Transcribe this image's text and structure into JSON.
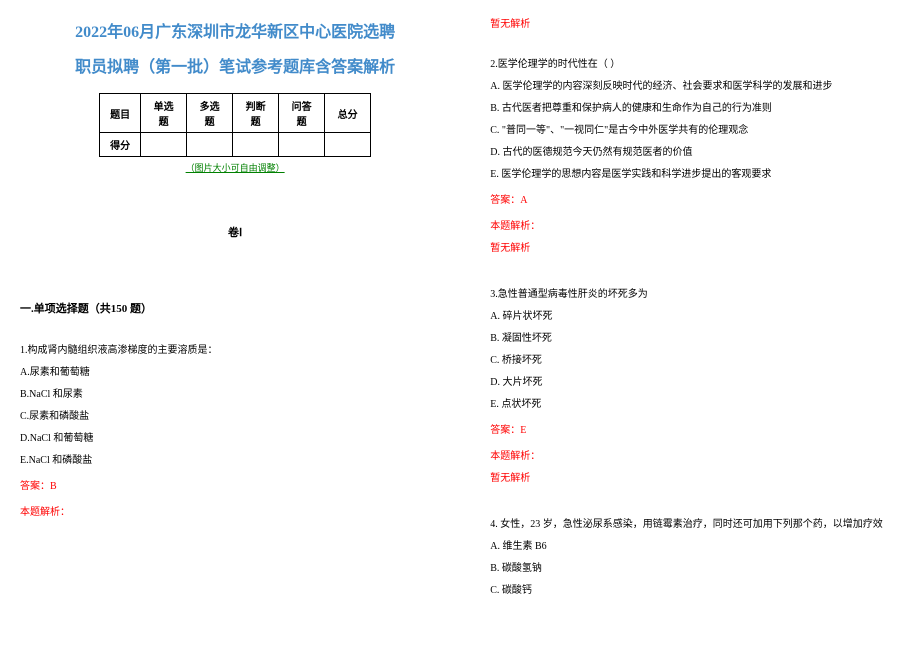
{
  "title_line1": "2022年06月广东深圳市龙华新区中心医院选聘",
  "title_line2": "职员拟聘（第一批）笔试参考题库含答案解析",
  "table_headers": [
    "题目",
    "单选题",
    "多选题",
    "判断题",
    "问答题",
    "总分"
  ],
  "table_row_label": "得分",
  "image_note": "（图片大小可自由调整）",
  "juan_label": "卷Ⅰ",
  "section_title": "一.单项选择题（共150 题）",
  "q1": {
    "text": "1.构成肾内髓组织液高渗梯度的主要溶质是：",
    "options": [
      "A.尿素和葡萄糖",
      "B.NaCl 和尿素",
      "C.尿素和磷酸盐",
      "D.NaCl 和葡萄糖",
      "E.NaCl 和磷酸盐"
    ],
    "answer": "答案：B",
    "explain_label": "本题解析："
  },
  "right_top_text": "暂无解析",
  "q2": {
    "text": "2.医学伦理学的时代性在（  ）",
    "options": [
      "A. 医学伦理学的内容深刻反映时代的经济、社会要求和医学科学的发展和进步",
      "B. 古代医者把尊重和保护病人的健康和生命作为自己的行为准则",
      "C. \"普同一等\"、\"一视同仁\"是古今中外医学共有的伦理观念",
      "D. 古代的医德规范今天仍然有规范医者的价值",
      "E. 医学伦理学的思想内容是医学实践和科学进步提出的客观要求"
    ],
    "answer": "答案：A",
    "explain_label": "本题解析：",
    "explain_none": "暂无解析"
  },
  "q3": {
    "text": "3.急性普通型病毒性肝炎的坏死多为",
    "options": [
      "A. 碎片状坏死",
      "B. 凝固性坏死",
      "C. 桥接坏死",
      "D. 大片坏死",
      "E. 点状坏死"
    ],
    "answer": "答案：E",
    "explain_label": "本题解析：",
    "explain_none": "暂无解析"
  },
  "q4": {
    "text": "4. 女性，23 岁，急性泌尿系感染，用链霉素治疗，同时还可加用下列那个药，以增加疗效",
    "options": [
      "A. 维生素 B6",
      "B. 碳酸氢钠",
      "C. 碳酸钙"
    ]
  }
}
